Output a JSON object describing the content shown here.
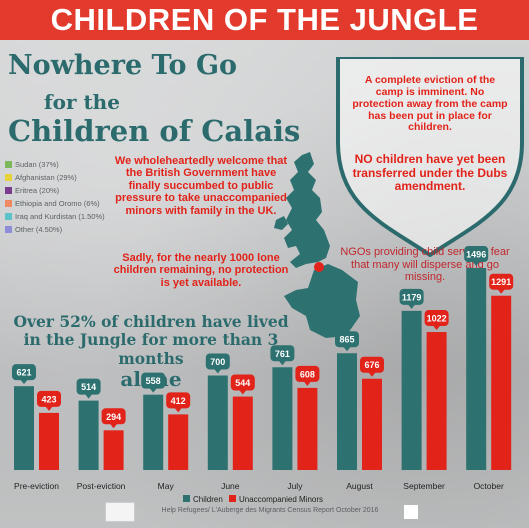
{
  "banner": {
    "title": "CHILDREN OF THE JUNGLE"
  },
  "headline": {
    "line1": "Nowhere To Go",
    "line2": "for the",
    "line3": "Children of Calais"
  },
  "nationalities": [
    {
      "label": "Sudan (37%)",
      "color": "#7ab85a"
    },
    {
      "label": "Afghanistan (29%)",
      "color": "#e8d23a"
    },
    {
      "label": "Eritrea (20%)",
      "color": "#7a3d8e"
    },
    {
      "label": "Ethiopia and Oromo (6%)",
      "color": "#f08a62"
    },
    {
      "label": "Iraq and Kurdistan (1.50%)",
      "color": "#5cc4c8"
    },
    {
      "label": "Other (4.50%)",
      "color": "#8e8ed8"
    }
  ],
  "text_blocks": {
    "government": "We wholeheartedly welcome that the British Government have finally succumbed to public pressure to take unaccompanied minors with family in the UK.",
    "no_protection": "Sadly, for the nearly 1000 lone children remaining, no protection is yet available.",
    "eviction": "A complete eviction of the camp is imminent. No protection away from the camp has been put in place for children.",
    "dubs": "NO children have yet been transferred under the Dubs amendment.",
    "ngo": "NGOs providing child services fear that many will disperse and go missing.",
    "stat_main": "Over 52% of children have lived in the Jungle for more than 3 months",
    "stat_alone": "alone"
  },
  "footer": {
    "credit": "Help Refugees/ L'Auberge des Migrants Census Report October 2016"
  },
  "colors": {
    "accent_red": "#e2231a",
    "teal": "#2c6b6d"
  },
  "chart_data": {
    "type": "bar",
    "categories": [
      "Pre-eviction",
      "Post-eviction",
      "May",
      "June",
      "July",
      "August",
      "September",
      "October"
    ],
    "series": [
      {
        "name": "Children",
        "color": "#2d7271",
        "values": [
          621,
          514,
          558,
          700,
          761,
          865,
          1179,
          1496
        ]
      },
      {
        "name": "Unaccompanied Minors",
        "color": "#e2231a",
        "values": [
          423,
          294,
          412,
          544,
          608,
          676,
          1022,
          1291
        ]
      }
    ],
    "legend_position": "bottom",
    "grid": false
  }
}
